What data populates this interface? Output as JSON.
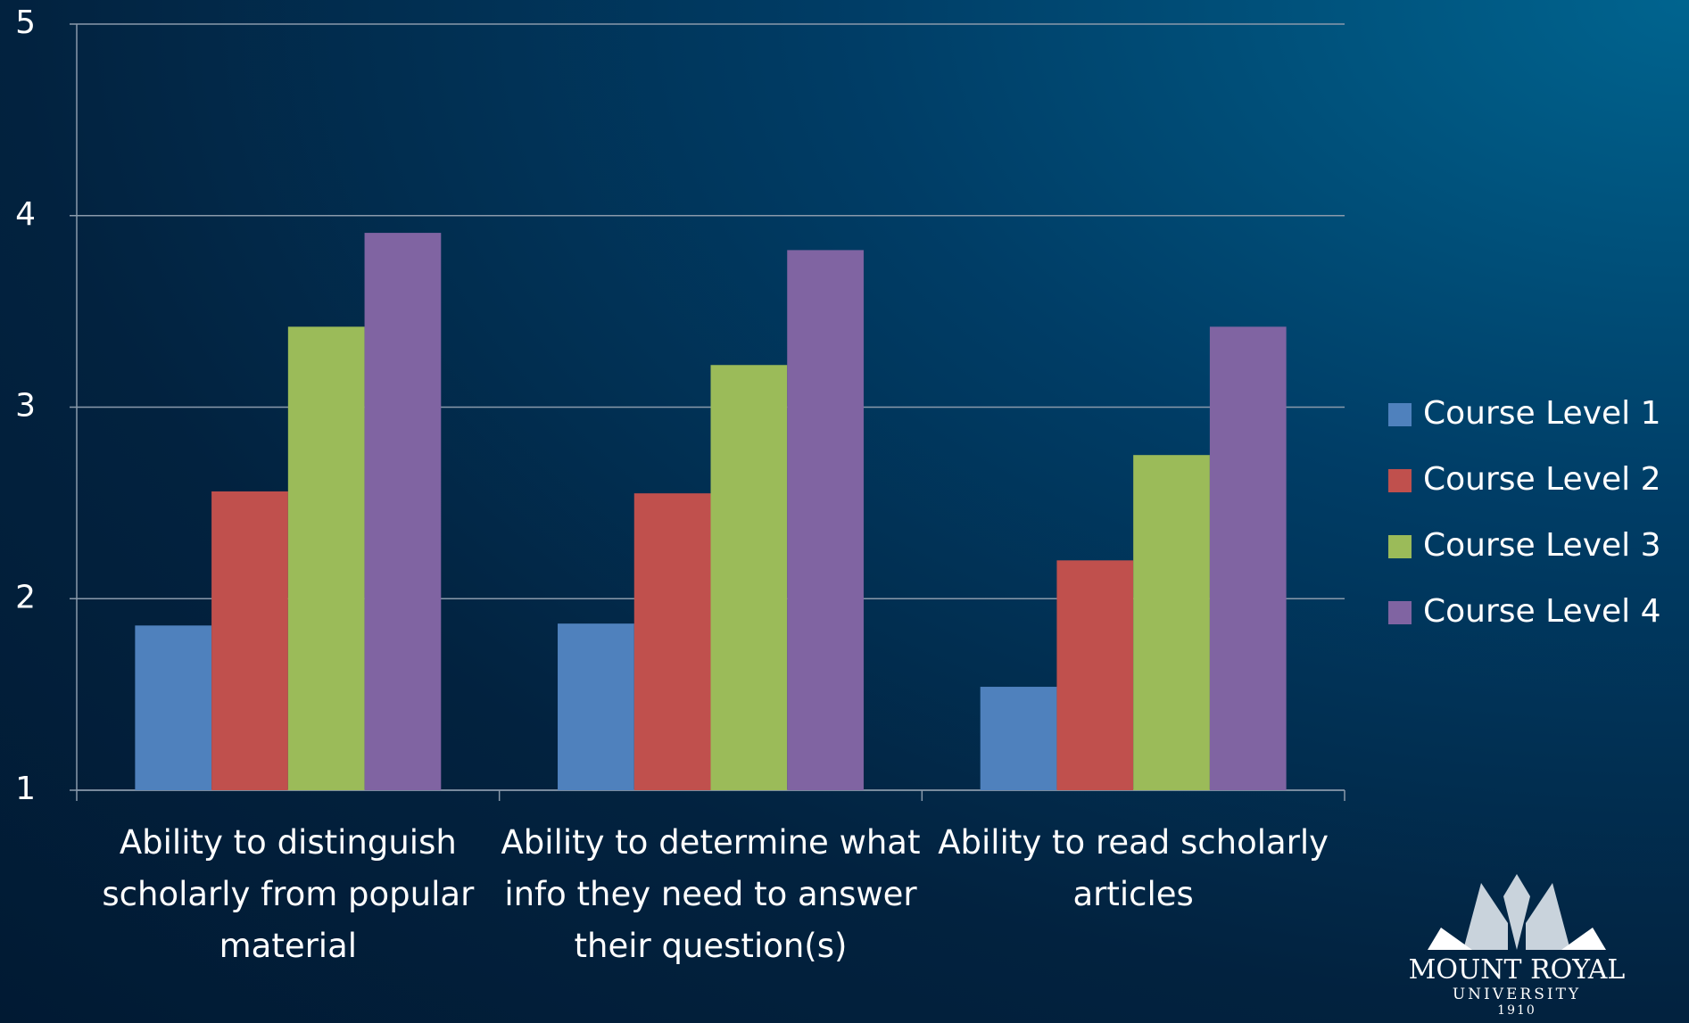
{
  "chart_data": {
    "type": "bar",
    "categories": [
      "Ability to distinguish scholarly from popular material",
      "Ability to determine what info they need to answer their question(s)",
      "Ability to read scholarly articles"
    ],
    "series": [
      {
        "name": "Course Level 1",
        "color": "#4f81bd",
        "values": [
          1.86,
          1.87,
          1.54
        ]
      },
      {
        "name": "Course Level 2",
        "color": "#c0504d",
        "values": [
          2.56,
          2.55,
          2.2
        ]
      },
      {
        "name": "Course Level 3",
        "color": "#9bbb59",
        "values": [
          3.42,
          3.22,
          2.75
        ]
      },
      {
        "name": "Course Level 4",
        "color": "#8064a2",
        "values": [
          3.91,
          3.82,
          3.42
        ]
      }
    ],
    "ylim": [
      1,
      5
    ],
    "yticks": [
      1,
      2,
      3,
      4,
      5
    ],
    "grid": true,
    "legend": "right"
  },
  "logo": {
    "name": "MOUNT ROYAL",
    "sub": "UNIVERSITY",
    "year": "1910"
  }
}
